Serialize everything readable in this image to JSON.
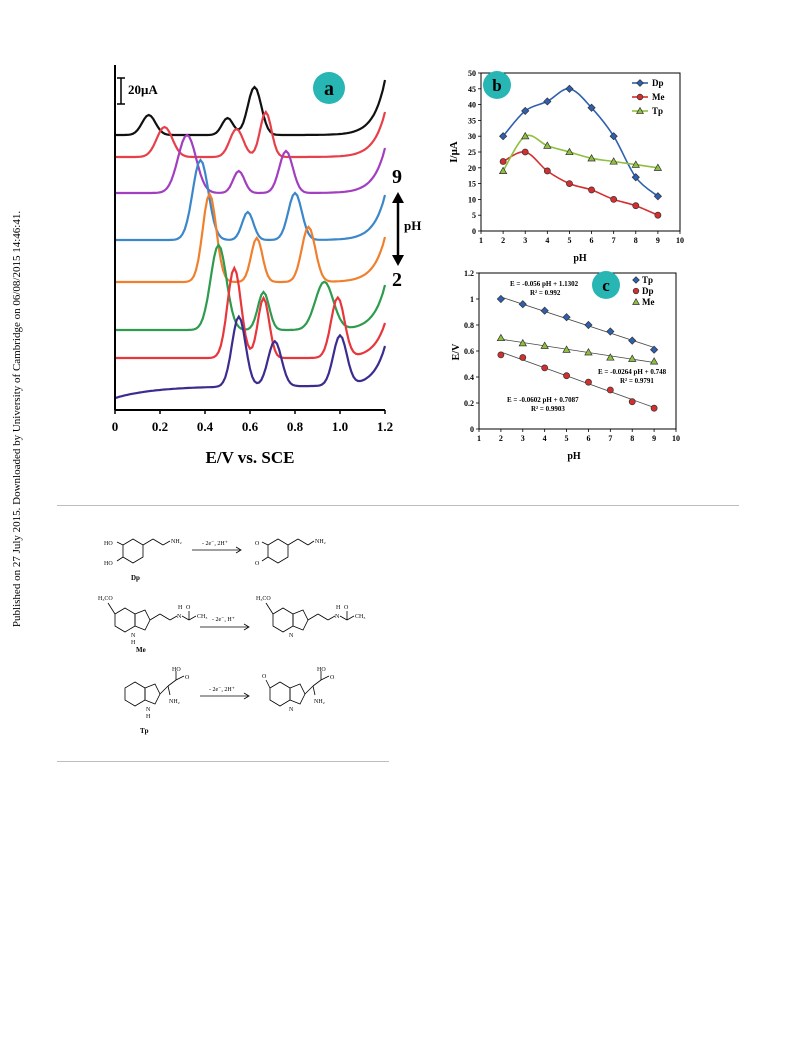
{
  "sidebar": {
    "text": "Published on 27 July 2015. Downloaded by University of Cambridge on 06/08/2015 14:46:41."
  },
  "colors": {
    "teal_badge": "#27b6b4",
    "rule": "#bdbdbd"
  },
  "panel_a": {
    "badge": "a",
    "scale_bar_label": "20μA",
    "ph_top": "9",
    "ph_arrow_label": "pH",
    "ph_bottom": "2",
    "xlabel": "E/V vs. SCE",
    "xticks": [
      "0",
      "0.2",
      "0.4",
      "0.6",
      "0.8",
      "1.0",
      "1.2"
    ],
    "trace_colors": [
      "#111111",
      "#e8404a",
      "#a13fc0",
      "#3b87c9",
      "#f0802e",
      "#2e9b4e",
      "#e8363c",
      "#3a2d8f"
    ]
  },
  "panel_b": {
    "badge": "b",
    "ylabel": "I/μA",
    "xlabel": "pH",
    "yticks": [
      "0",
      "5",
      "10",
      "15",
      "20",
      "25",
      "30",
      "35",
      "40",
      "45",
      "50"
    ],
    "xticks": [
      "1",
      "2",
      "3",
      "4",
      "5",
      "6",
      "7",
      "8",
      "9",
      "10"
    ]
  },
  "panel_c": {
    "badge": "c",
    "ylabel": "E/V",
    "xlabel": "pH",
    "yticks": [
      "0",
      "0.2",
      "0.4",
      "0.6",
      "0.8",
      "1",
      "1.2"
    ],
    "xticks": [
      "1",
      "2",
      "3",
      "4",
      "5",
      "6",
      "7",
      "8",
      "9",
      "10"
    ],
    "eq_tp": "E = -0.056 pH + 1.1302",
    "r2_tp": "R² = 0.992",
    "eq_me": "E = -0.0264 pH + 0.748",
    "r2_me": "R² = 0.9791",
    "eq_dp": "E = -0.0602 pH + 0.7087",
    "r2_dp": "R² = 0.9903"
  },
  "chart_data": [
    {
      "type": "line",
      "panel": "b",
      "xlabel": "pH",
      "ylabel": "I/μA",
      "xlim": [
        1,
        10
      ],
      "ylim": [
        0,
        50
      ],
      "x": [
        2,
        3,
        4,
        5,
        6,
        7,
        8,
        9
      ],
      "series": [
        {
          "name": "Dp",
          "color": "#2f5fb0",
          "marker": "diamond",
          "values": [
            30,
            38,
            41,
            45,
            39,
            30,
            17,
            11
          ]
        },
        {
          "name": "Me",
          "color": "#d32f2f",
          "marker": "circle",
          "values": [
            22,
            25,
            19,
            15,
            13,
            10,
            8,
            5
          ]
        },
        {
          "name": "Tp",
          "color": "#8fbf3f",
          "marker": "triangle",
          "values": [
            19,
            30,
            27,
            25,
            23,
            22,
            21,
            20
          ]
        }
      ],
      "legend": "top-right"
    },
    {
      "type": "scatter",
      "panel": "c",
      "xlabel": "pH",
      "ylabel": "E/V",
      "xlim": [
        1,
        10
      ],
      "ylim": [
        0,
        1.2
      ],
      "x": [
        2,
        3,
        4,
        5,
        6,
        7,
        8,
        9
      ],
      "series": [
        {
          "name": "Tp",
          "color": "#2f5fb0",
          "marker": "diamond",
          "values": [
            1.0,
            0.96,
            0.91,
            0.86,
            0.8,
            0.75,
            0.68,
            0.61
          ]
        },
        {
          "name": "Dp",
          "color": "#d32f2f",
          "marker": "circle",
          "values": [
            0.57,
            0.55,
            0.47,
            0.41,
            0.36,
            0.3,
            0.21,
            0.16
          ]
        },
        {
          "name": "Me",
          "color": "#8fbf3f",
          "marker": "triangle",
          "values": [
            0.7,
            0.66,
            0.64,
            0.61,
            0.59,
            0.55,
            0.54,
            0.52
          ]
        }
      ],
      "legend": "top-right"
    }
  ],
  "scheme": {
    "dp_label": "Dp",
    "me_label": "Me",
    "tp_label": "Tp",
    "dp_arrow": "- 2e⁻, 2H⁺",
    "me_arrow": "- 2e⁻, H⁺",
    "tp_arrow": "- 2e⁻, 2H⁺",
    "dp_ho1": "HO",
    "dp_ho2": "HO",
    "dp_nh2": "NH₂",
    "dp_o1": "O",
    "dp_o2": "O",
    "dp_p_nh2": "NH₂",
    "me_h3co": "H₃CO",
    "me_nh": "N",
    "me_h": "H",
    "me_n": "N",
    "me_hn": "H",
    "me_o": "O",
    "me_ch3": "CH₃",
    "me_p_h3co": "H₃CO",
    "me_p_n": "N",
    "me_p_amide_n": "N",
    "me_p_h": "H",
    "me_p_o": "O",
    "me_p_ch3": "CH₃",
    "tp_ho": "HO",
    "tp_o": "O",
    "tp_nh2": "NH₂",
    "tp_n": "N",
    "tp_h": "H",
    "tp_p_o": "O",
    "tp_p_ho": "HO",
    "tp_p_o2": "O",
    "tp_p_nh2": "NH₂",
    "tp_p_n": "N"
  }
}
